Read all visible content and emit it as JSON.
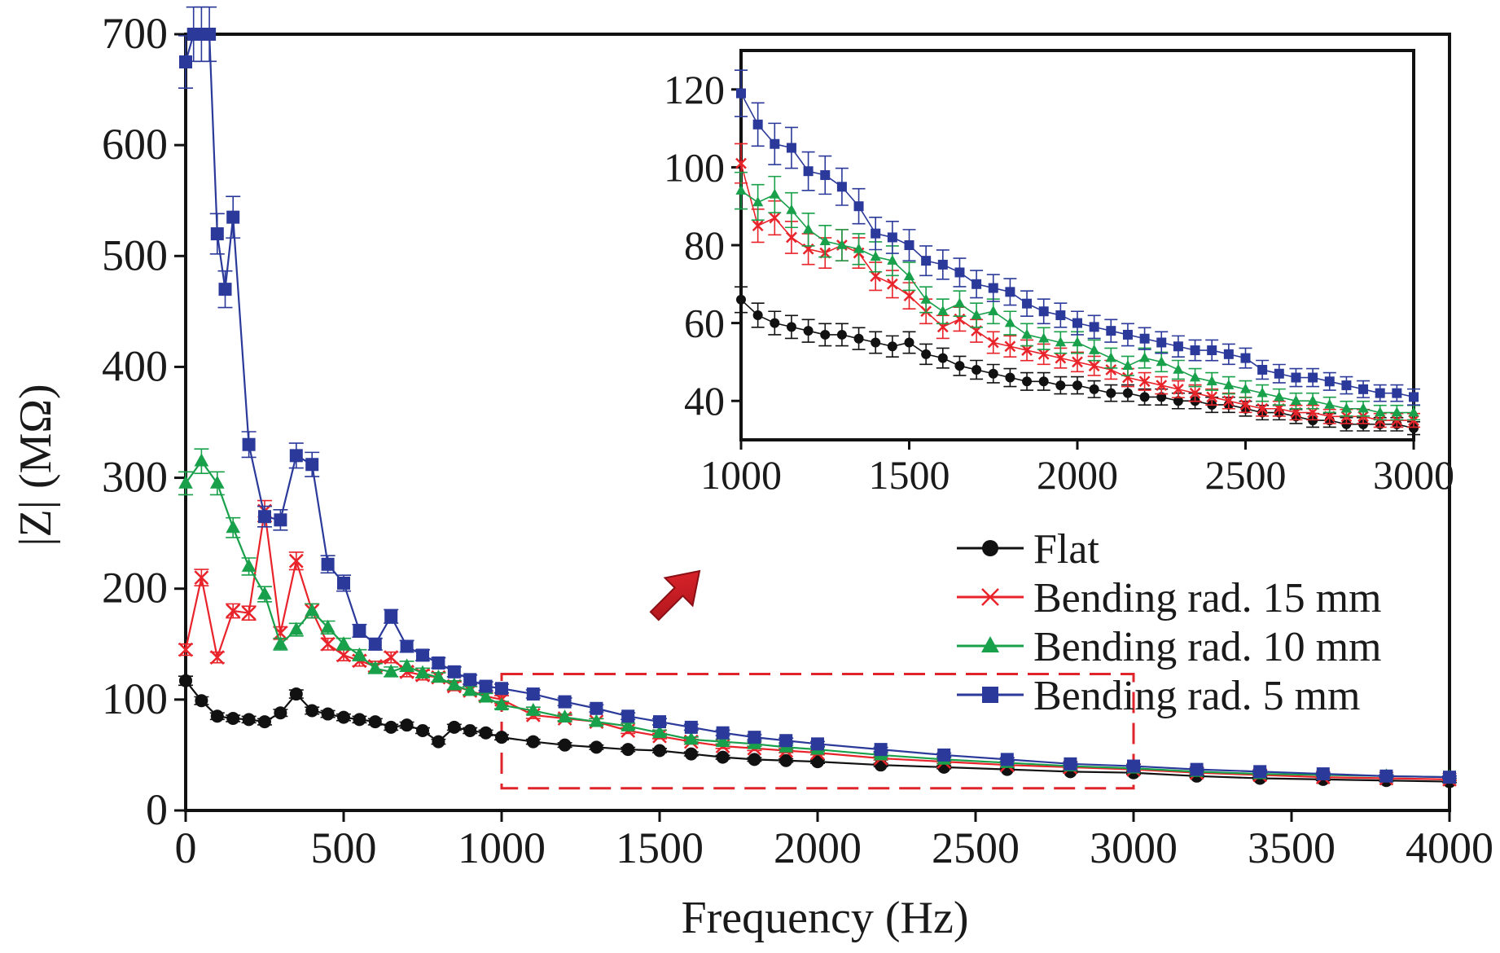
{
  "chart_data": [
    {
      "type": "line",
      "role": "main",
      "title": "",
      "xlabel": "Frequency (Hz)",
      "ylabel": "|Z| (MΩ)",
      "xlim": [
        0,
        4000
      ],
      "ylim": [
        0,
        700
      ],
      "xticks": [
        0,
        500,
        1000,
        1500,
        2000,
        2500,
        3000,
        3500,
        4000
      ],
      "yticks": [
        0,
        100,
        200,
        300,
        400,
        500,
        600,
        700
      ],
      "legend_position": "right-middle",
      "zoom_box": {
        "x_range": [
          1000,
          3000
        ],
        "y_range": [
          20,
          123
        ],
        "annotation": "arrow pointing to inset"
      },
      "series": [
        {
          "name": "Flat",
          "color": "#111111",
          "marker": "circle",
          "x": [
            0,
            50,
            100,
            150,
            200,
            250,
            300,
            350,
            400,
            450,
            500,
            550,
            600,
            650,
            700,
            750,
            800,
            850,
            900,
            950,
            1000,
            1100,
            1200,
            1300,
            1400,
            1500,
            1600,
            1700,
            1800,
            1900,
            2000,
            2200,
            2400,
            2600,
            2800,
            3000,
            3200,
            3400,
            3600,
            3800,
            4000
          ],
          "y": [
            117,
            99,
            85,
            83,
            82,
            80,
            88,
            105,
            90,
            87,
            84,
            82,
            80,
            75,
            77,
            72,
            62,
            75,
            72,
            70,
            66,
            62,
            59,
            57,
            55,
            54,
            51,
            48,
            46,
            45,
            44,
            41,
            39,
            37,
            35,
            34,
            31,
            29,
            28,
            27,
            26
          ]
        },
        {
          "name": "Bending rad. 15 mm",
          "color": "#e8232a",
          "marker": "x",
          "x": [
            0,
            50,
            100,
            150,
            200,
            250,
            300,
            350,
            400,
            450,
            500,
            550,
            600,
            650,
            700,
            750,
            800,
            850,
            900,
            950,
            1000,
            1100,
            1200,
            1300,
            1400,
            1500,
            1600,
            1700,
            1800,
            1900,
            2000,
            2200,
            2400,
            2600,
            2800,
            3000,
            3200,
            3400,
            3600,
            3800,
            4000
          ],
          "y": [
            145,
            210,
            138,
            180,
            178,
            270,
            160,
            225,
            180,
            150,
            140,
            135,
            130,
            138,
            125,
            122,
            120,
            112,
            108,
            103,
            100,
            86,
            83,
            80,
            72,
            67,
            62,
            58,
            56,
            54,
            52,
            47,
            44,
            41,
            39,
            37,
            34,
            32,
            30,
            29,
            28
          ]
        },
        {
          "name": "Bending rad. 10 mm",
          "color": "#18a04a",
          "marker": "triangle",
          "x": [
            0,
            50,
            100,
            150,
            200,
            250,
            300,
            350,
            400,
            450,
            500,
            550,
            600,
            650,
            700,
            750,
            800,
            850,
            900,
            950,
            1000,
            1100,
            1200,
            1300,
            1400,
            1500,
            1600,
            1700,
            1800,
            1900,
            2000,
            2200,
            2400,
            2600,
            2800,
            3000,
            3200,
            3400,
            3600,
            3800,
            4000
          ],
          "y": [
            295,
            315,
            295,
            255,
            220,
            195,
            150,
            163,
            180,
            165,
            150,
            140,
            128,
            125,
            130,
            124,
            120,
            113,
            108,
            102,
            95,
            90,
            84,
            80,
            76,
            70,
            64,
            62,
            60,
            57,
            55,
            50,
            46,
            43,
            40,
            38,
            35,
            33,
            32,
            31,
            30
          ]
        },
        {
          "name": "Bending rad. 5 mm",
          "color": "#2b3a9a",
          "marker": "square",
          "x": [
            0,
            25,
            50,
            75,
            100,
            125,
            150,
            200,
            250,
            300,
            350,
            400,
            450,
            500,
            550,
            600,
            650,
            700,
            750,
            800,
            850,
            900,
            950,
            1000,
            1100,
            1200,
            1300,
            1400,
            1500,
            1600,
            1700,
            1800,
            1900,
            2000,
            2200,
            2400,
            2600,
            2800,
            3000,
            3200,
            3400,
            3600,
            3800,
            4000
          ],
          "y": [
            675,
            700,
            700,
            700,
            520,
            470,
            535,
            330,
            265,
            262,
            320,
            312,
            222,
            205,
            162,
            150,
            175,
            148,
            140,
            133,
            125,
            118,
            112,
            110,
            105,
            98,
            92,
            85,
            80,
            75,
            70,
            66,
            63,
            60,
            55,
            50,
            46,
            42,
            40,
            37,
            35,
            33,
            31,
            30
          ]
        }
      ]
    },
    {
      "type": "line",
      "role": "inset",
      "title": "",
      "xlabel": "",
      "ylabel": "",
      "xlim": [
        1000,
        3000
      ],
      "ylim": [
        30,
        130
      ],
      "xticks": [
        1000,
        1500,
        2000,
        2500,
        3000
      ],
      "yticks": [
        40,
        60,
        80,
        100,
        120
      ],
      "series": [
        {
          "name": "Flat",
          "color": "#111111",
          "marker": "circle",
          "x": [
            1000,
            1050,
            1100,
            1150,
            1200,
            1250,
            1300,
            1350,
            1400,
            1450,
            1500,
            1550,
            1600,
            1650,
            1700,
            1750,
            1800,
            1850,
            1900,
            1950,
            2000,
            2050,
            2100,
            2150,
            2200,
            2250,
            2300,
            2350,
            2400,
            2450,
            2500,
            2550,
            2600,
            2650,
            2700,
            2750,
            2800,
            2850,
            2900,
            2950,
            3000
          ],
          "y": [
            66,
            62,
            60,
            59,
            58,
            57,
            57,
            56,
            55,
            54,
            55,
            52,
            51,
            49,
            48,
            47,
            46,
            45,
            45,
            44,
            44,
            43,
            42,
            42,
            41,
            41,
            40,
            40,
            39,
            39,
            38,
            37,
            37,
            36,
            35,
            35,
            34,
            34,
            34,
            34,
            33
          ]
        },
        {
          "name": "Bending rad. 15 mm",
          "color": "#e8232a",
          "marker": "x",
          "x": [
            1000,
            1050,
            1100,
            1150,
            1200,
            1250,
            1300,
            1350,
            1400,
            1450,
            1500,
            1550,
            1600,
            1650,
            1700,
            1750,
            1800,
            1850,
            1900,
            1950,
            2000,
            2050,
            2100,
            2150,
            2200,
            2250,
            2300,
            2350,
            2400,
            2450,
            2500,
            2550,
            2600,
            2650,
            2700,
            2750,
            2800,
            2850,
            2900,
            2950,
            3000
          ],
          "y": [
            101,
            85,
            87,
            82,
            79,
            78,
            80,
            78,
            72,
            70,
            67,
            63,
            59,
            61,
            58,
            55,
            54,
            53,
            52,
            51,
            50,
            49,
            48,
            46,
            45,
            44,
            43,
            42,
            41,
            40,
            39,
            38,
            38,
            37,
            37,
            36,
            36,
            36,
            35,
            35,
            35
          ]
        },
        {
          "name": "Bending rad. 10 mm",
          "color": "#18a04a",
          "marker": "triangle",
          "x": [
            1000,
            1050,
            1100,
            1150,
            1200,
            1250,
            1300,
            1350,
            1400,
            1450,
            1500,
            1550,
            1600,
            1650,
            1700,
            1750,
            1800,
            1850,
            1900,
            1950,
            2000,
            2050,
            2100,
            2150,
            2200,
            2250,
            2300,
            2350,
            2400,
            2450,
            2500,
            2550,
            2600,
            2650,
            2700,
            2750,
            2800,
            2850,
            2900,
            2950,
            3000
          ],
          "y": [
            94,
            91,
            93,
            89,
            84,
            81,
            80,
            79,
            77,
            76,
            72,
            66,
            63,
            65,
            62,
            63,
            60,
            57,
            56,
            55,
            55,
            53,
            51,
            49,
            51,
            50,
            48,
            46,
            45,
            44,
            43,
            42,
            41,
            40,
            40,
            39,
            38,
            38,
            37,
            37,
            37
          ]
        },
        {
          "name": "Bending rad. 5 mm",
          "color": "#2b3a9a",
          "marker": "square",
          "x": [
            1000,
            1050,
            1100,
            1150,
            1200,
            1250,
            1300,
            1350,
            1400,
            1450,
            1500,
            1550,
            1600,
            1650,
            1700,
            1750,
            1800,
            1850,
            1900,
            1950,
            2000,
            2050,
            2100,
            2150,
            2200,
            2250,
            2300,
            2350,
            2400,
            2450,
            2500,
            2550,
            2600,
            2650,
            2700,
            2750,
            2800,
            2850,
            2900,
            2950,
            3000
          ],
          "y": [
            119,
            111,
            106,
            105,
            99,
            98,
            95,
            90,
            83,
            82,
            80,
            76,
            75,
            73,
            70,
            69,
            68,
            65,
            63,
            62,
            60,
            59,
            58,
            57,
            56,
            55,
            54,
            53,
            53,
            52,
            51,
            48,
            47,
            46,
            46,
            45,
            44,
            43,
            42,
            42,
            41
          ]
        }
      ]
    }
  ]
}
